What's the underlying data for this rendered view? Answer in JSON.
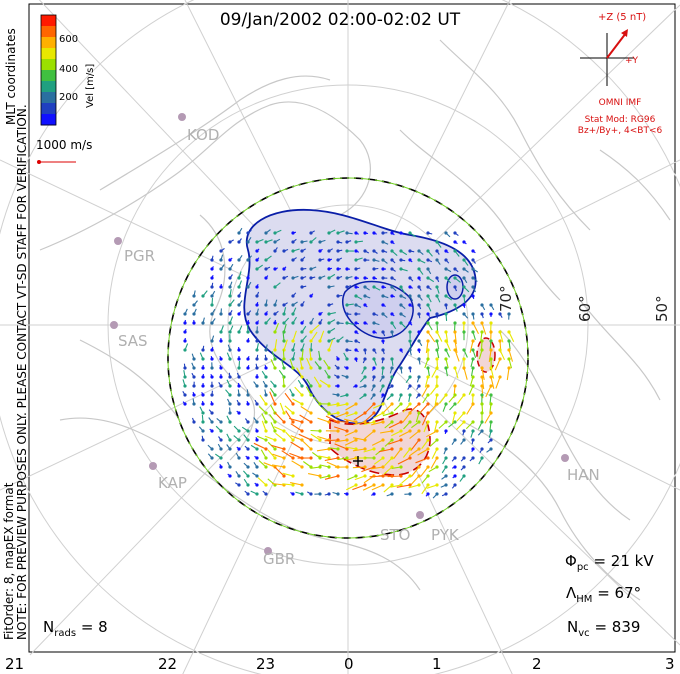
{
  "title": "09/Jan/2002 02:00-02:02 UT",
  "colorbar": {
    "label": "Vel [m/s]",
    "ticks": [
      "600",
      "400",
      "200"
    ],
    "colors": [
      "#ff1a00",
      "#ff6600",
      "#ffb000",
      "#e8e800",
      "#9be000",
      "#40c040",
      "#20a080",
      "#2a6fa0",
      "#2040c0",
      "#1010ff"
    ]
  },
  "coord_label": "MLT coordinates",
  "scale_label": "1000 m/s",
  "note_text": "NOTE: FOR PREVIEW PURPOSES ONLY. PLEASE CONTACT VT-SD STAFF FOR VERIFICATION.",
  "fitorder_text": "FitOrder: 8, mapEX format",
  "imf": {
    "z_label": "+Z (5 nT)",
    "y_label": "+Y",
    "source": "OMNI IMF",
    "model": "Stat Mod: RG96",
    "condition": "Bz+/By+, 4<BT<6"
  },
  "stations": [
    "KOD",
    "PGR",
    "SAS",
    "KAP",
    "GBR",
    "STO",
    "PYK",
    "HAN"
  ],
  "latitude_labels": [
    "70°",
    "60°",
    "50°"
  ],
  "mlt_labels": [
    "21",
    "22",
    "23",
    "0",
    "1",
    "2",
    "3"
  ],
  "stats": {
    "phi_symbol": "Φ",
    "phi_sub": "pc",
    "phi_value": "= 21 kV",
    "lambda_symbol": "Λ",
    "lambda_sub": "HM",
    "lambda_value": "= 67°",
    "nvc_symbol": "N",
    "nvc_sub": "vc",
    "nvc_value": "= 839",
    "nrads_symbol": "N",
    "nrads_sub": "rads",
    "nrads_value": "= 8"
  }
}
